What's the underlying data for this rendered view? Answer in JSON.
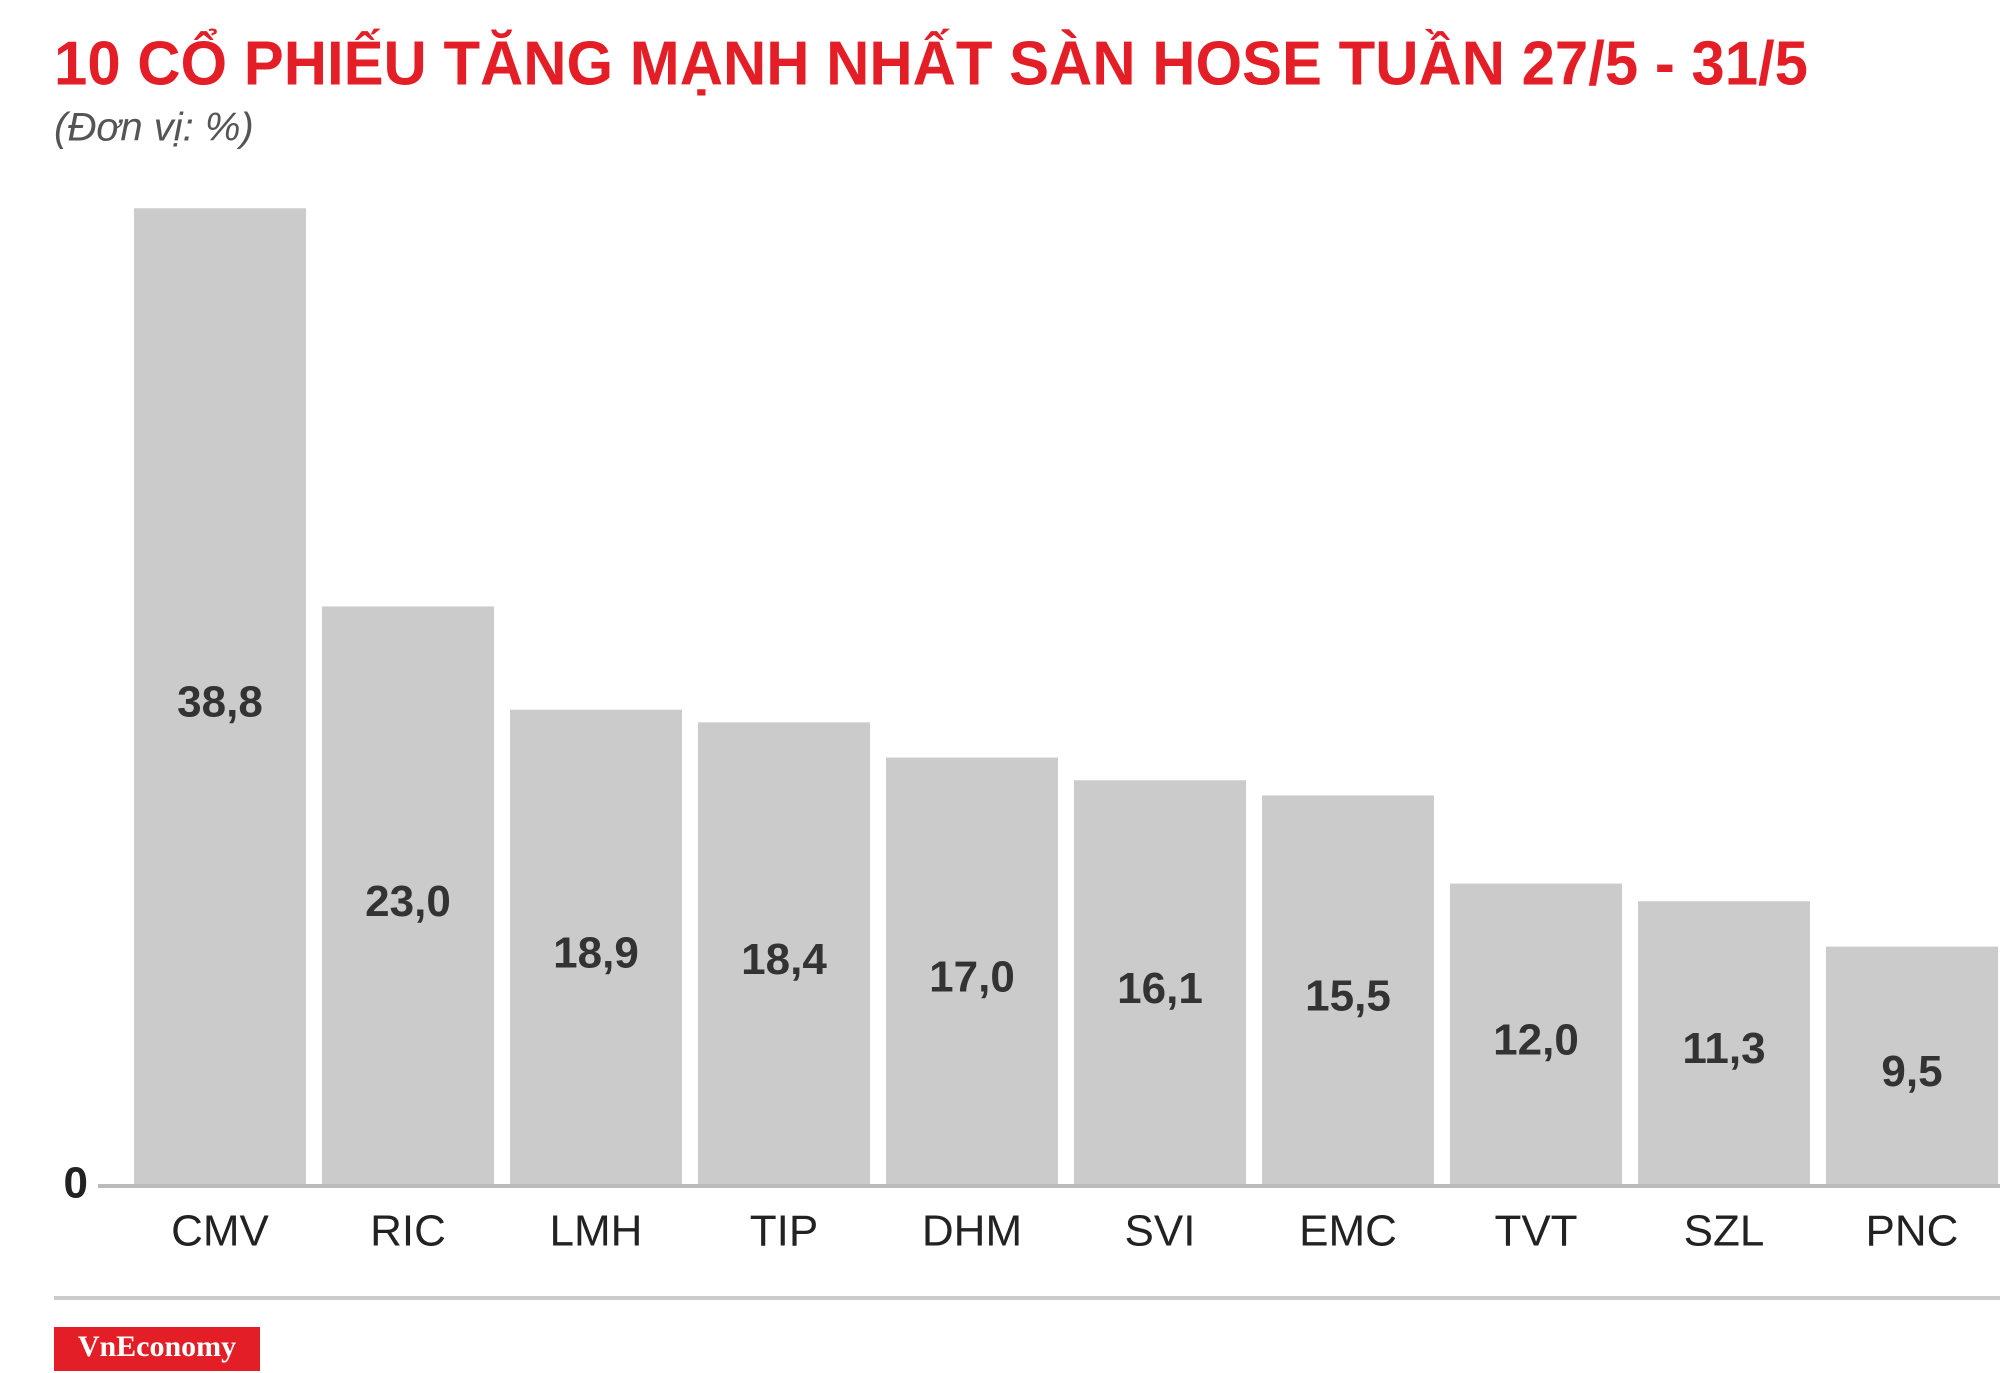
{
  "chart_data": {
    "type": "bar",
    "title": "10 CỔ PHIẾU TĂNG MẠNH NHẤT SÀN HOSE TUẦN 27/5 - 31/5",
    "subtitle": "(Đơn vị: %)",
    "categories": [
      "CMV",
      "RIC",
      "LMH",
      "TIP",
      "DHM",
      "SVI",
      "EMC",
      "TVT",
      "SZL",
      "PNC"
    ],
    "values": [
      38.8,
      23.0,
      18.9,
      18.4,
      17.0,
      16.1,
      15.5,
      12.0,
      11.3,
      9.5
    ],
    "value_labels": [
      "38,8",
      "23,0",
      "18,9",
      "18,4",
      "17,0",
      "16,1",
      "15,5",
      "12,0",
      "11,3",
      "9,5"
    ],
    "color": "#cccbcb",
    "ylim": [
      0,
      40
    ],
    "yticks": [
      0
    ],
    "grid": false,
    "source": "VnEconomy"
  }
}
